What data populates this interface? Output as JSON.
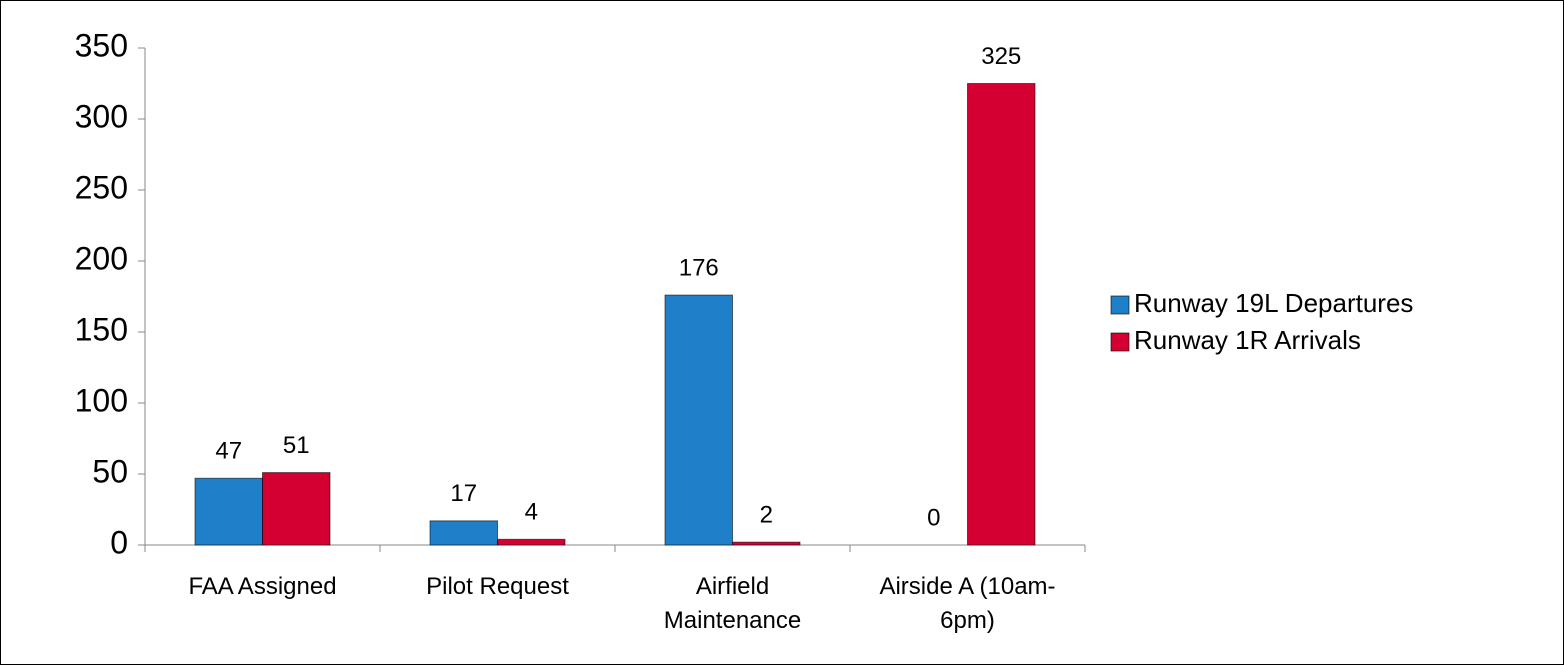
{
  "chart_data": {
    "type": "bar",
    "categories": [
      "FAA Assigned",
      "Pilot Request",
      "Airfield Maintenance",
      "Airside A (10am-6pm)"
    ],
    "series": [
      {
        "name": "Runway 19L Departures",
        "color": "#1f7fc8",
        "values": [
          47,
          17,
          176,
          0
        ]
      },
      {
        "name": "Runway 1R Arrivals",
        "color": "#d50032",
        "values": [
          51,
          4,
          2,
          325
        ]
      }
    ],
    "ylim": [
      0,
      350
    ],
    "yticks": [
      0,
      50,
      100,
      150,
      200,
      250,
      300,
      350
    ],
    "grid": false,
    "legend": "right"
  }
}
